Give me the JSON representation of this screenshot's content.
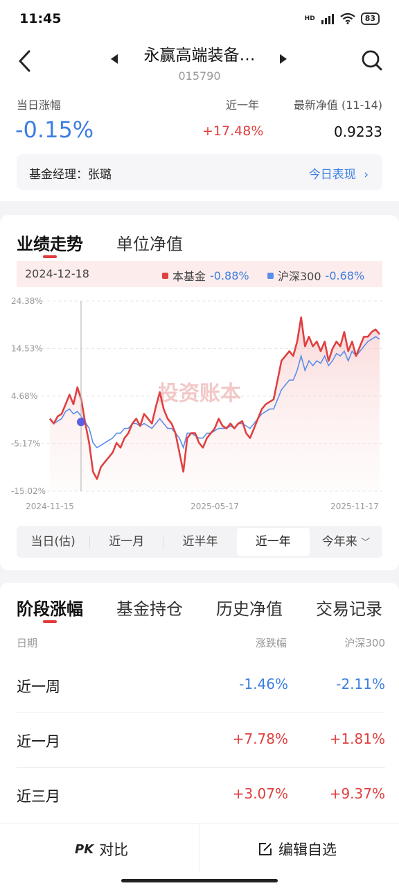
{
  "status_bar": {
    "time": "11:45",
    "network": "HD",
    "battery": "83"
  },
  "header": {
    "title": "永赢高端装备…",
    "code": "015790",
    "daily_change_label": "当日涨幅",
    "daily_change_value": "-0.15%",
    "year_label": "近一年",
    "year_value": "+17.48%",
    "nav_label": "最新净值 (11-14)",
    "nav_value": "0.9233",
    "manager_text": "基金经理：张璐",
    "manager_link": "今日表现",
    "colors": {
      "up": "#e04040",
      "down": "#3d7ee0"
    }
  },
  "chart_section": {
    "tabs": [
      {
        "label": "业绩走势"
      },
      {
        "label": "单位净值"
      }
    ],
    "legend": {
      "date": "2024-12-18",
      "fund_label": "本基金",
      "fund_value": "-0.88%",
      "index_label": "沪深300",
      "index_value": "-0.68%"
    },
    "watermark": "投资账本",
    "ranges": [
      "当日(估)",
      "近一月",
      "近半年",
      "近一年",
      "今年来"
    ],
    "selected_range": "近一年"
  },
  "chart_data": {
    "type": "line",
    "ylim": [
      -15.02,
      24.38
    ],
    "y_ticks": [
      "24.38%",
      "14.53%",
      "4.68%",
      "-5.17%",
      "-15.02%"
    ],
    "x_ticks": [
      "2024-11-15",
      "2025-05-17",
      "2025-11-17"
    ],
    "crosshair_date": "2024-12-18",
    "series": [
      {
        "name": "本基金",
        "color": "#e04040",
        "values": [
          0,
          -1,
          0.5,
          1,
          3,
          5,
          3,
          6.5,
          4,
          -0.88,
          -5,
          -11,
          -12.5,
          -10,
          -9,
          -8,
          -7,
          -5,
          -6,
          -4,
          -3,
          -1,
          0,
          -1.5,
          1,
          0,
          -1,
          2.5,
          5.5,
          2,
          0,
          -1,
          -3,
          -7,
          -11,
          -4,
          -3,
          -3,
          -5,
          -6,
          -4,
          -3,
          -2,
          0,
          -1.5,
          -2,
          -1,
          -2,
          -1,
          -0.5,
          -3,
          -4,
          -2,
          0,
          2,
          3,
          3.5,
          4,
          8,
          12,
          13,
          14,
          13,
          16,
          21,
          15,
          17,
          15,
          16,
          14,
          16,
          12,
          14.5,
          16,
          15,
          18,
          14,
          16,
          13,
          15,
          17,
          17,
          18,
          18.5,
          17.5
        ],
        "legend_value": "-0.88%"
      },
      {
        "name": "沪深300",
        "color": "#5b8ee8",
        "values": [
          0,
          -1,
          -0.5,
          0,
          1.5,
          2,
          1,
          1.5,
          0.5,
          -0.68,
          -2,
          -5,
          -6,
          -5.5,
          -5,
          -4.5,
          -4,
          -3,
          -3,
          -2,
          -2,
          -1,
          -1,
          -1.5,
          -1,
          -1.5,
          -2,
          -1,
          0,
          -1,
          -2,
          -2,
          -3,
          -4,
          -6,
          -3,
          -3,
          -3.5,
          -4,
          -4,
          -3,
          -3,
          -2.5,
          -2,
          -2,
          -2,
          -1.5,
          -2,
          -1,
          -1,
          -1.5,
          -2,
          -1,
          0,
          1,
          1.5,
          2,
          2,
          4,
          6,
          7,
          8,
          8,
          10,
          13,
          10,
          12,
          11,
          12,
          11.5,
          13,
          11,
          12,
          13.5,
          13,
          14,
          12,
          14,
          13,
          14,
          15,
          16,
          16.5,
          17,
          16.5
        ],
        "legend_value": "-0.68%"
      }
    ]
  },
  "performance_section": {
    "tabs": [
      {
        "label": "阶段涨幅"
      },
      {
        "label": "基金持仓"
      },
      {
        "label": "历史净值"
      },
      {
        "label": "交易记录"
      }
    ],
    "col_date": "日期",
    "col_change": "涨跌幅",
    "col_index": "沪深300",
    "rows": [
      {
        "period": "近一周",
        "change": "-1.46%",
        "index": "-2.11%"
      },
      {
        "period": "近一月",
        "change": "+7.78%",
        "index": "+1.81%"
      },
      {
        "period": "近三月",
        "change": "+3.07%",
        "index": "+9.37%"
      }
    ]
  },
  "bottom_bar": {
    "compare_label": "对比",
    "compare_icon_text": "PK",
    "edit_label": "编辑自选"
  }
}
